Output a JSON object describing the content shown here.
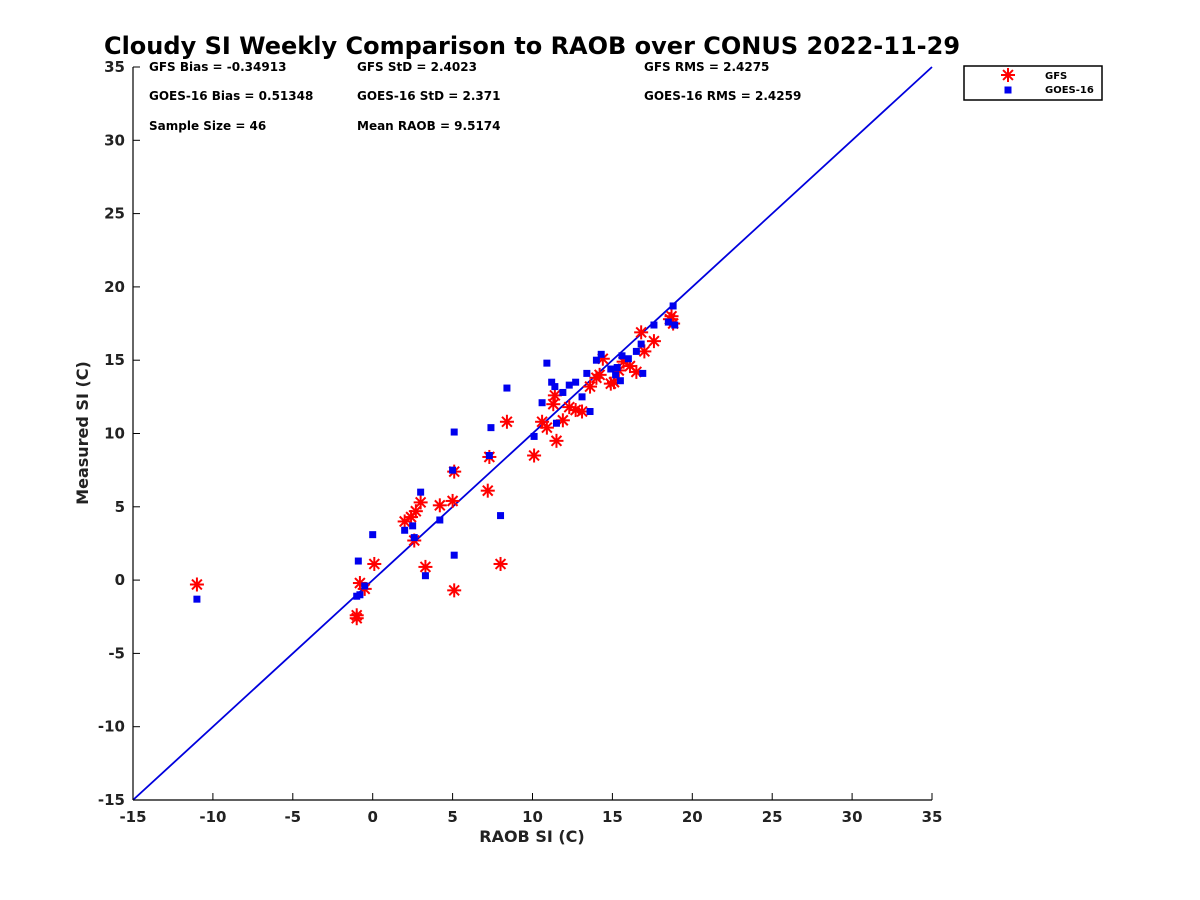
{
  "chart_data": {
    "type": "scatter",
    "title": "Cloudy SI Weekly Comparison to RAOB over CONUS 2022-11-29",
    "xlabel": "RAOB SI (C)",
    "ylabel": "Measured SI (C)",
    "xlim": [
      -15,
      35
    ],
    "ylim": [
      -15,
      35
    ],
    "xticks": [
      "-15",
      "-10",
      "-5",
      "0",
      "5",
      "10",
      "15",
      "20",
      "25",
      "30",
      "35"
    ],
    "yticks": [
      "35",
      "30",
      "25",
      "20",
      "15",
      "10",
      "5",
      "0",
      "-5",
      "-10",
      "-15"
    ],
    "grid": false,
    "legend_position": "top-right",
    "reference_line": {
      "from": [
        -15,
        -15
      ],
      "to": [
        35,
        35
      ],
      "color": "#0000dd"
    },
    "stats": [
      "GFS Bias = -0.34913",
      "GFS StD = 2.4023",
      "GFS RMS = 2.4275",
      "GOES-16 Bias = 0.51348",
      "GOES-16 StD = 2.371",
      "GOES-16 RMS = 2.4259",
      "Sample Size = 46",
      "Mean RAOB = 9.5174"
    ],
    "series": [
      {
        "name": "GFS",
        "marker": "asterisk",
        "color": "#ff0000",
        "points": [
          [
            -11.0,
            -0.3
          ],
          [
            -1.0,
            -2.4
          ],
          [
            -1.0,
            -2.6
          ],
          [
            -0.8,
            -0.2
          ],
          [
            -0.5,
            -0.6
          ],
          [
            0.1,
            1.1
          ],
          [
            2.0,
            4.0
          ],
          [
            2.4,
            4.3
          ],
          [
            2.6,
            2.7
          ],
          [
            2.7,
            4.7
          ],
          [
            3.0,
            5.3
          ],
          [
            3.3,
            0.9
          ],
          [
            4.2,
            5.1
          ],
          [
            5.0,
            5.4
          ],
          [
            5.1,
            7.4
          ],
          [
            5.1,
            -0.7
          ],
          [
            7.2,
            6.1
          ],
          [
            7.3,
            8.4
          ],
          [
            8.0,
            1.1
          ],
          [
            8.4,
            10.8
          ],
          [
            10.1,
            8.5
          ],
          [
            10.6,
            10.8
          ],
          [
            10.9,
            10.4
          ],
          [
            11.3,
            12.0
          ],
          [
            11.4,
            12.6
          ],
          [
            11.5,
            9.5
          ],
          [
            11.9,
            10.9
          ],
          [
            12.3,
            11.8
          ],
          [
            12.7,
            11.6
          ],
          [
            13.1,
            11.5
          ],
          [
            13.6,
            13.2
          ],
          [
            14.0,
            13.8
          ],
          [
            14.4,
            15.1
          ],
          [
            14.9,
            13.4
          ],
          [
            15.1,
            13.5
          ],
          [
            15.4,
            14.3
          ],
          [
            15.7,
            14.9
          ],
          [
            16.1,
            14.6
          ],
          [
            16.5,
            14.2
          ],
          [
            16.8,
            16.9
          ],
          [
            17.0,
            15.6
          ],
          [
            17.6,
            16.3
          ],
          [
            18.6,
            17.8
          ],
          [
            18.7,
            18.0
          ],
          [
            18.8,
            17.5
          ],
          [
            14.2,
            14.0
          ]
        ]
      },
      {
        "name": "GOES-16",
        "marker": "square",
        "color": "#0000ee",
        "points": [
          [
            -11.0,
            -1.3
          ],
          [
            -1.0,
            -1.1
          ],
          [
            -0.9,
            1.3
          ],
          [
            -0.8,
            -1.0
          ],
          [
            -0.5,
            -0.4
          ],
          [
            0.0,
            3.1
          ],
          [
            2.0,
            3.4
          ],
          [
            2.5,
            3.7
          ],
          [
            2.6,
            2.9
          ],
          [
            3.0,
            6.0
          ],
          [
            3.3,
            0.3
          ],
          [
            4.2,
            4.1
          ],
          [
            5.0,
            7.5
          ],
          [
            5.1,
            10.1
          ],
          [
            5.1,
            1.7
          ],
          [
            7.3,
            8.5
          ],
          [
            7.4,
            10.4
          ],
          [
            8.0,
            4.4
          ],
          [
            8.4,
            13.1
          ],
          [
            10.1,
            9.8
          ],
          [
            10.6,
            12.1
          ],
          [
            10.9,
            14.8
          ],
          [
            11.2,
            13.5
          ],
          [
            11.4,
            13.2
          ],
          [
            11.5,
            10.7
          ],
          [
            11.9,
            12.8
          ],
          [
            12.3,
            13.3
          ],
          [
            12.7,
            13.5
          ],
          [
            13.1,
            12.5
          ],
          [
            13.4,
            14.1
          ],
          [
            13.6,
            11.5
          ],
          [
            14.0,
            15.0
          ],
          [
            14.3,
            15.4
          ],
          [
            14.9,
            14.4
          ],
          [
            15.2,
            14.0
          ],
          [
            15.3,
            14.5
          ],
          [
            15.5,
            13.6
          ],
          [
            15.6,
            15.3
          ],
          [
            16.0,
            15.1
          ],
          [
            16.5,
            15.6
          ],
          [
            16.8,
            16.1
          ],
          [
            16.9,
            14.1
          ],
          [
            17.6,
            17.4
          ],
          [
            18.5,
            17.6
          ],
          [
            18.8,
            18.7
          ],
          [
            18.9,
            17.4
          ]
        ]
      }
    ]
  }
}
